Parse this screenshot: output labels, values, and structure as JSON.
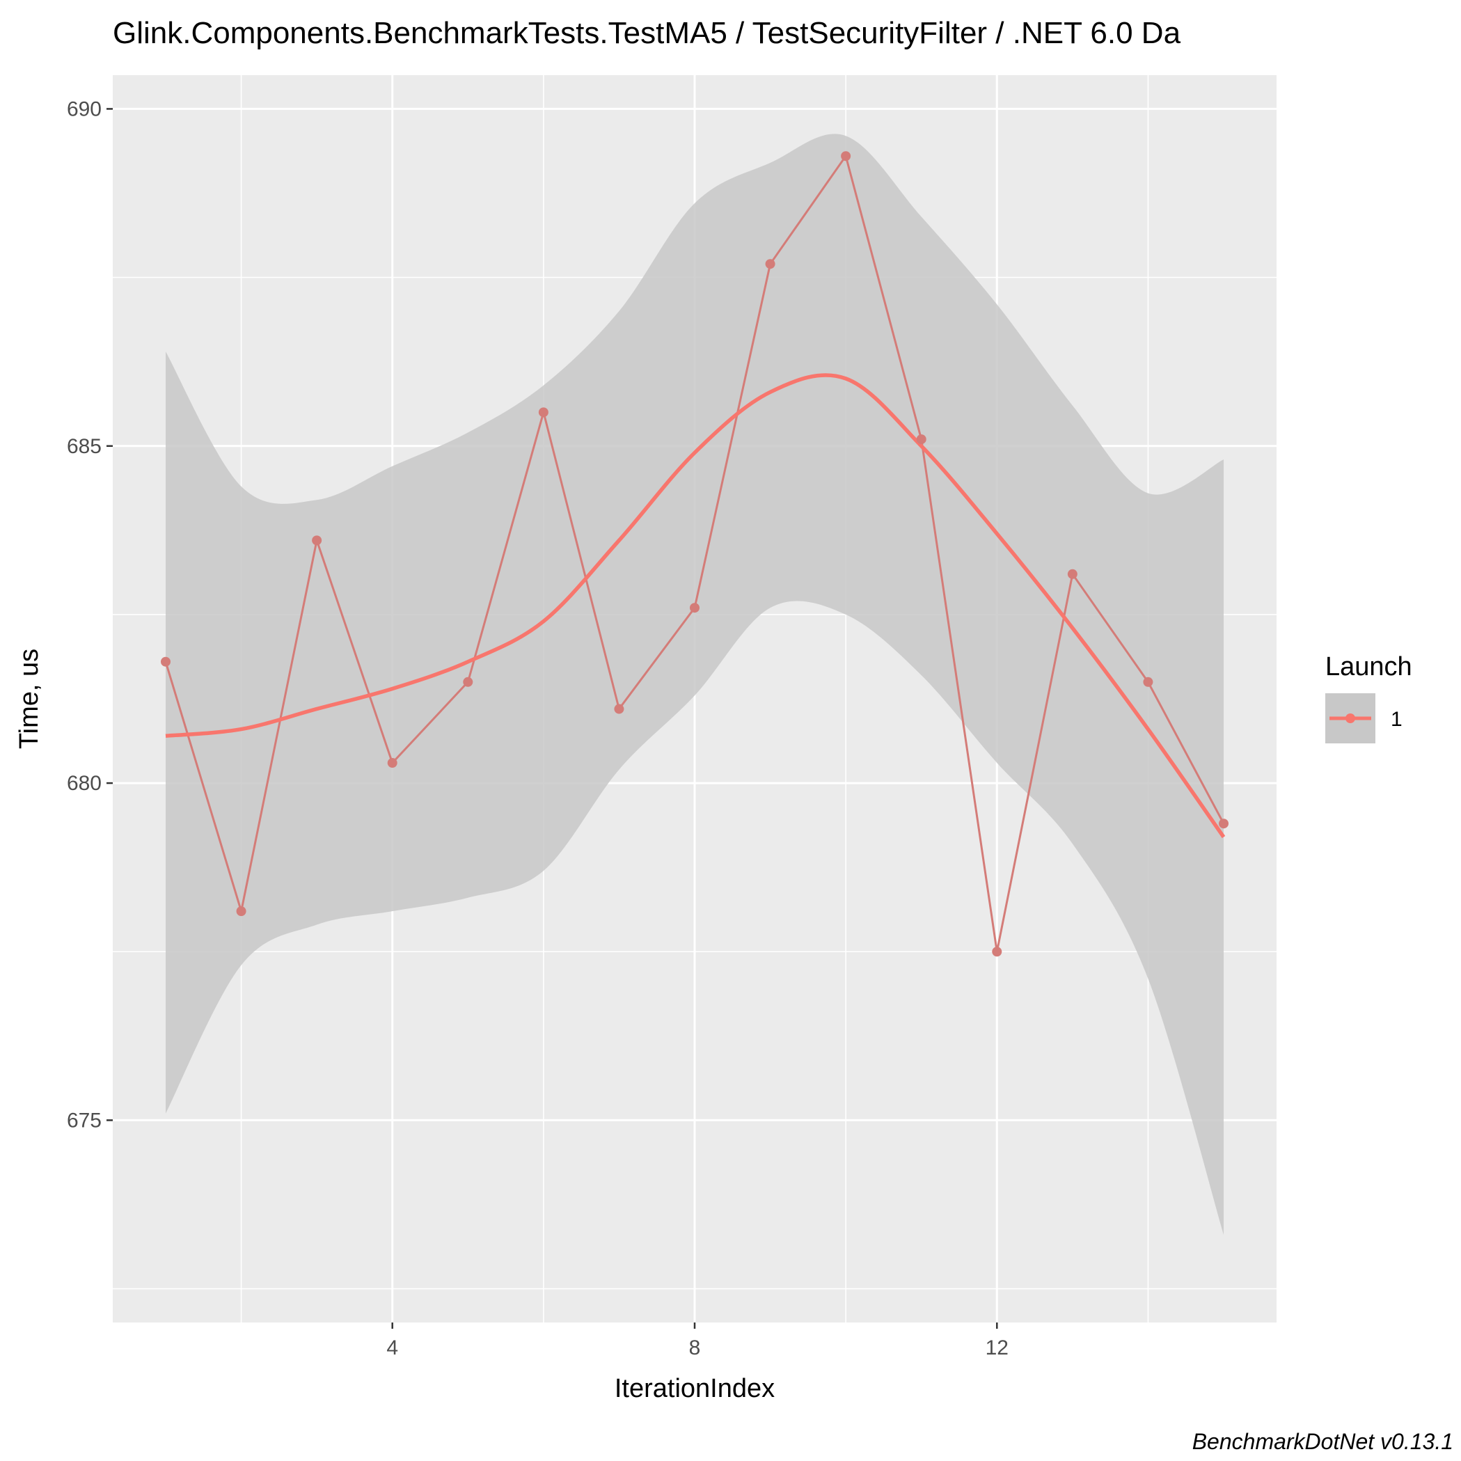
{
  "chart_data": {
    "type": "line",
    "title": "Glink.Components.BenchmarkTests.TestMA5 / TestSecurityFilter / .NET 6.0 Da",
    "xlabel": "IterationIndex",
    "ylabel": "Time, us",
    "caption": "BenchmarkDotNet v0.13.1",
    "xlim": [
      0.3,
      15.7
    ],
    "ylim": [
      672.0,
      690.5
    ],
    "x_ticks": [
      4,
      8,
      12
    ],
    "x_tick_labels": [
      "4",
      "8",
      "12"
    ],
    "y_ticks": [
      675,
      680,
      685,
      690
    ],
    "y_tick_labels": [
      "675",
      "680",
      "685",
      "690"
    ],
    "grid": true,
    "legend": {
      "title": "Launch",
      "placement": "right",
      "entries": [
        "1"
      ]
    },
    "colors": {
      "series": "#f8766d",
      "series_line": "#d47c78",
      "ribbon": "#c8c8c8",
      "panel": "#ebebeb",
      "grid": "#ffffff"
    },
    "series": [
      {
        "name": "1",
        "x": [
          1,
          2,
          3,
          4,
          5,
          6,
          7,
          8,
          9,
          10,
          11,
          12,
          13,
          14,
          15
        ],
        "values": [
          681.8,
          678.1,
          683.6,
          680.3,
          681.5,
          685.5,
          681.1,
          682.6,
          687.7,
          689.3,
          685.1,
          677.5,
          683.1,
          681.5,
          679.4
        ]
      }
    ],
    "smooth": {
      "x": [
        1,
        2,
        3,
        4,
        5,
        6,
        7,
        8,
        9,
        10,
        11,
        12,
        13,
        14,
        15
      ],
      "values": [
        680.7,
        680.8,
        681.1,
        681.4,
        681.8,
        682.4,
        683.6,
        684.9,
        685.8,
        686.0,
        685.0,
        683.7,
        682.3,
        680.8,
        679.2
      ],
      "lower": [
        675.1,
        677.3,
        677.9,
        678.1,
        678.3,
        678.7,
        680.2,
        681.3,
        682.6,
        682.5,
        681.6,
        680.3,
        679.1,
        677.1,
        673.3
      ],
      "upper": [
        686.4,
        684.4,
        684.2,
        684.7,
        685.2,
        685.9,
        687.0,
        688.6,
        689.2,
        689.6,
        688.4,
        687.1,
        685.6,
        684.3,
        684.8
      ]
    }
  }
}
